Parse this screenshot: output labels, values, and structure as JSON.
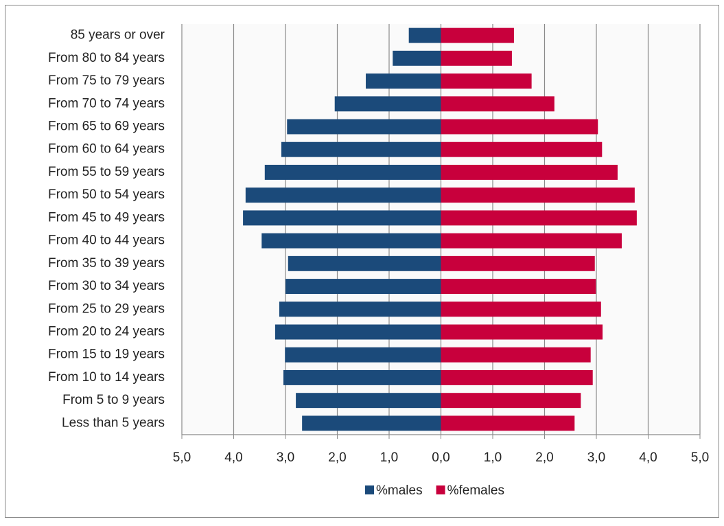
{
  "chart_data": {
    "type": "bar",
    "orientation": "horizontal",
    "stacked": true,
    "categories": [
      "85 years or over",
      "From 80 to 84 years",
      "From 75 to 79 years",
      "From 70 to 74 years",
      "From 65 to 69 years",
      "From 60 to 64 years",
      "From 55 to 59 years",
      "From 50 to 54 years",
      "From 45 to 49 years",
      "From 40 to 44 years",
      "From 35 to 39 years",
      "From 30 to 34 years",
      "From 25 to 29 years",
      "From 20 to 24 years",
      "From 15 to 19 years",
      "From 10 to 14 years",
      "From 5 to 9 years",
      "Less than 5 years"
    ],
    "series": [
      {
        "name": "%males",
        "color": "#1b4a7a",
        "values": [
          -0.62,
          -0.93,
          -1.45,
          -2.05,
          -2.97,
          -3.08,
          -3.4,
          -3.77,
          -3.82,
          -3.46,
          -2.95,
          -3.0,
          -3.12,
          -3.2,
          -3.01,
          -3.04,
          -2.8,
          -2.68
        ]
      },
      {
        "name": "%females",
        "color": "#c8003c",
        "values": [
          1.41,
          1.37,
          1.75,
          2.19,
          3.03,
          3.11,
          3.41,
          3.74,
          3.78,
          3.49,
          2.97,
          2.99,
          3.09,
          3.12,
          2.89,
          2.93,
          2.7,
          2.58
        ]
      }
    ],
    "xlim": [
      -5,
      5
    ],
    "xticks": [
      {
        "value": -5,
        "label": "5,0"
      },
      {
        "value": -4,
        "label": "4,0"
      },
      {
        "value": -3,
        "label": "3,0"
      },
      {
        "value": -2,
        "label": "2,0"
      },
      {
        "value": -1,
        "label": "1,0"
      },
      {
        "value": 0,
        "label": "0,0"
      },
      {
        "value": 1,
        "label": "1,0"
      },
      {
        "value": 2,
        "label": "2,0"
      },
      {
        "value": 3,
        "label": "3,0"
      },
      {
        "value": 4,
        "label": "4,0"
      },
      {
        "value": 5,
        "label": "5,0"
      }
    ],
    "grid": true,
    "legend": "bottom"
  }
}
